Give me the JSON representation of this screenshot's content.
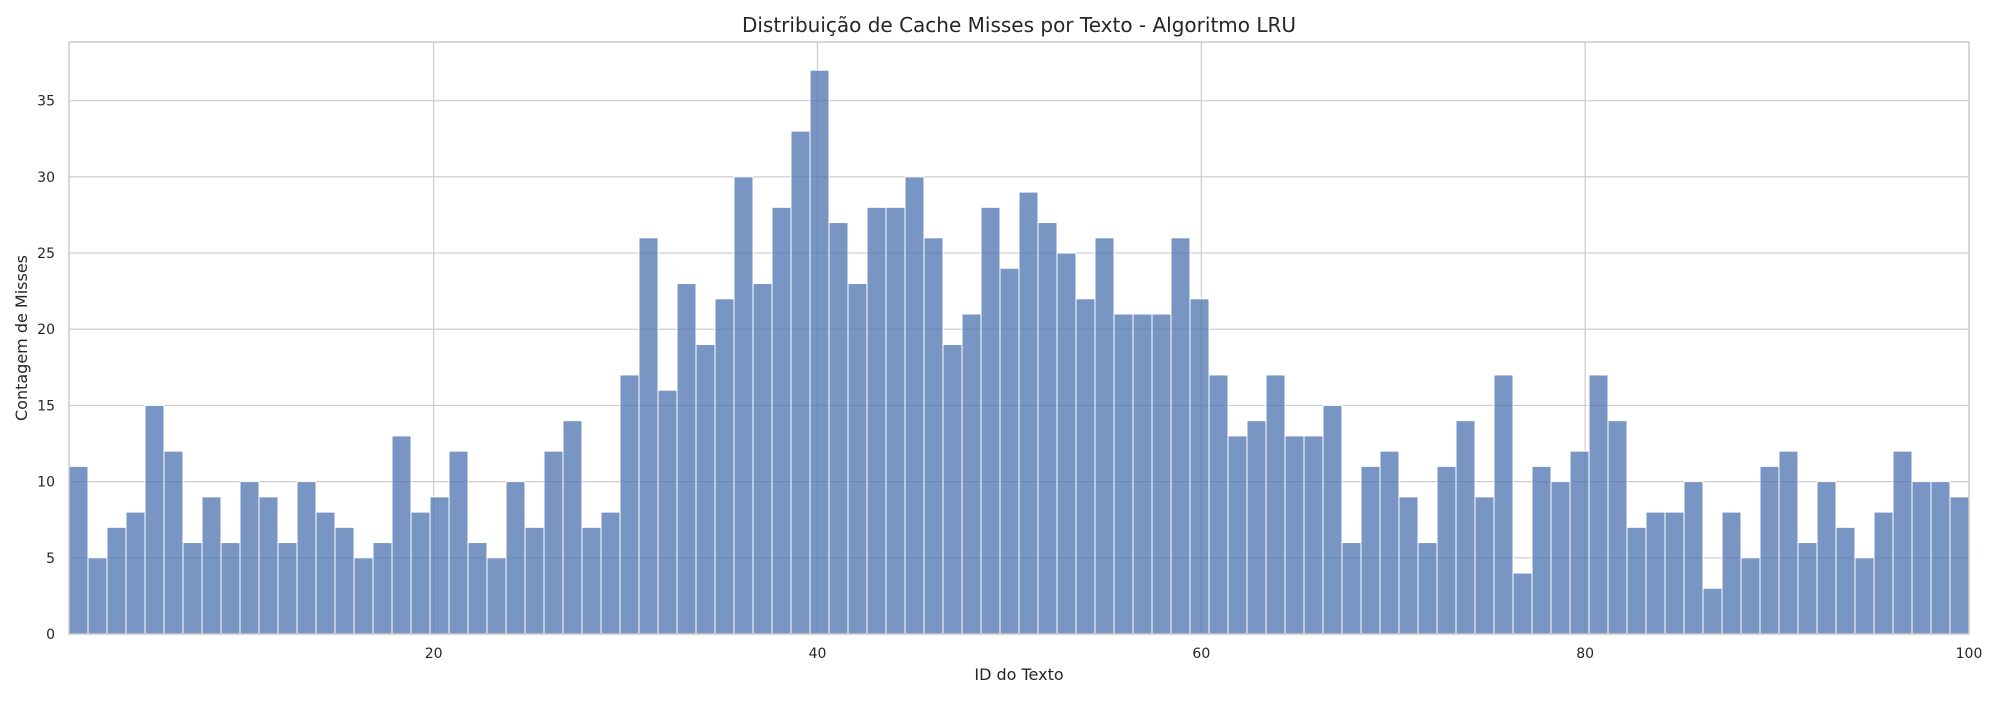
{
  "chart_data": {
    "type": "bar",
    "title": "Distribuição de Cache Misses por Texto - Algoritmo LRU",
    "xlabel": "ID do Texto",
    "ylabel": "Contagem de Misses",
    "xlim": [
      1,
      100
    ],
    "ylim": [
      0,
      38.85
    ],
    "xticks": [
      20,
      40,
      60,
      80,
      100
    ],
    "yticks": [
      0,
      5,
      10,
      15,
      20,
      25,
      30,
      35
    ],
    "grid": true,
    "bar_color": "#4c72b0",
    "values": [
      11,
      5,
      7,
      8,
      15,
      12,
      6,
      9,
      6,
      10,
      9,
      6,
      10,
      8,
      7,
      5,
      6,
      13,
      8,
      9,
      12,
      6,
      5,
      10,
      7,
      12,
      14,
      7,
      8,
      17,
      26,
      16,
      23,
      19,
      22,
      30,
      23,
      28,
      33,
      37,
      27,
      23,
      28,
      28,
      30,
      26,
      19,
      21,
      28,
      24,
      29,
      27,
      25,
      22,
      26,
      21,
      21,
      21,
      26,
      22,
      17,
      13,
      14,
      17,
      13,
      13,
      15,
      6,
      11,
      12,
      9,
      6,
      11,
      14,
      9,
      17,
      4,
      11,
      10,
      12,
      17,
      14,
      7,
      8,
      8,
      10,
      3,
      8,
      5,
      11,
      12,
      6,
      10,
      7,
      5,
      8,
      12,
      10,
      10,
      9
    ]
  }
}
